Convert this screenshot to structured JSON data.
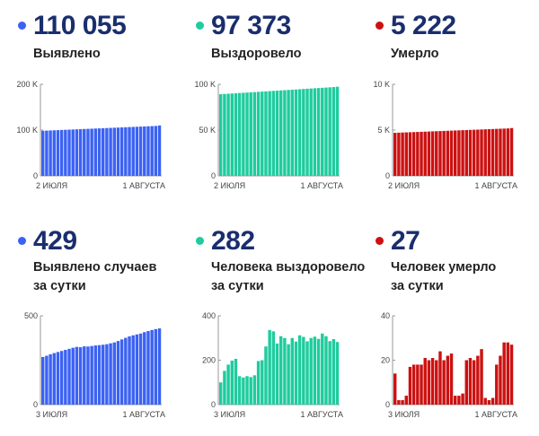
{
  "panels": [
    {
      "id": "detected-total",
      "value": "110 055",
      "label_lines": [
        "Выявлено"
      ],
      "color": "#3b62f3",
      "chart_data": {
        "type": "bar",
        "y_ticks": [
          {
            "v": 0,
            "t": "0"
          },
          {
            "v": 100000,
            "t": "100 K"
          },
          {
            "v": 200000,
            "t": "200 K"
          }
        ],
        "ylim": [
          0,
          200000
        ],
        "x_label_left": "2 ИЮЛЯ",
        "x_label_right": "1 АВГУСТА",
        "values": [
          98500,
          98850,
          99200,
          99550,
          99900,
          100250,
          100600,
          100950,
          101300,
          101650,
          102000,
          102350,
          102700,
          103050,
          103400,
          103750,
          104100,
          104450,
          104800,
          105150,
          105500,
          105850,
          106200,
          106550,
          106900,
          107250,
          107600,
          107950,
          108300,
          108650,
          109000,
          110055
        ]
      }
    },
    {
      "id": "recovered-total",
      "value": "97 373",
      "label_lines": [
        "Выздоровело"
      ],
      "color": "#1fcc9e",
      "chart_data": {
        "type": "bar",
        "y_ticks": [
          {
            "v": 0,
            "t": "0"
          },
          {
            "v": 50000,
            "t": "50 K"
          },
          {
            "v": 100000,
            "t": "100 K"
          }
        ],
        "ylim": [
          0,
          100000
        ],
        "x_label_left": "2 ИЮЛЯ",
        "x_label_right": "1 АВГУСТА",
        "values": [
          89200,
          89460,
          89720,
          89980,
          90240,
          90500,
          90760,
          91020,
          91280,
          91540,
          91800,
          92060,
          92320,
          92580,
          92840,
          93100,
          93360,
          93620,
          93880,
          94140,
          94400,
          94660,
          94920,
          95180,
          95440,
          95700,
          95960,
          96220,
          96480,
          96740,
          97000,
          97373
        ]
      }
    },
    {
      "id": "deaths-total",
      "value": "5 222",
      "label_lines": [
        "Умерло"
      ],
      "color": "#cc1111",
      "chart_data": {
        "type": "bar",
        "y_ticks": [
          {
            "v": 0,
            "t": "0"
          },
          {
            "v": 5000,
            "t": "5 K"
          },
          {
            "v": 10000,
            "t": "10 K"
          }
        ],
        "ylim": [
          0,
          10000
        ],
        "x_label_left": "2 ИЮЛЯ",
        "x_label_right": "1 АВГУСТА",
        "values": [
          4700,
          4716,
          4732,
          4748,
          4764,
          4780,
          4796,
          4812,
          4828,
          4844,
          4860,
          4876,
          4892,
          4908,
          4924,
          4940,
          4956,
          4972,
          4988,
          5004,
          5020,
          5036,
          5052,
          5068,
          5084,
          5100,
          5116,
          5132,
          5148,
          5164,
          5180,
          5222
        ]
      }
    },
    {
      "id": "detected-daily",
      "value": "429",
      "label_lines": [
        "Выявлено случаев",
        "за сутки"
      ],
      "color": "#3b62f3",
      "chart_data": {
        "type": "bar",
        "y_ticks": [
          {
            "v": 0,
            "t": "0"
          },
          {
            "v": 500,
            "t": "500"
          }
        ],
        "ylim": [
          0,
          500
        ],
        "x_label_left": "3 ИЮЛЯ",
        "x_label_right": "1 АВГУСТА",
        "values": [
          268,
          275,
          283,
          290,
          296,
          302,
          308,
          314,
          320,
          325,
          323,
          328,
          327,
          330,
          333,
          335,
          337,
          340,
          345,
          350,
          358,
          367,
          376,
          384,
          390,
          395,
          400,
          408,
          414,
          420,
          425,
          429
        ]
      }
    },
    {
      "id": "recovered-daily",
      "value": "282",
      "label_lines": [
        "Человека выздоровело",
        "за сутки"
      ],
      "color": "#1fcc9e",
      "chart_data": {
        "type": "bar",
        "y_ticks": [
          {
            "v": 0,
            "t": "0"
          },
          {
            "v": 200,
            "t": "200"
          },
          {
            "v": 400,
            "t": "400"
          }
        ],
        "ylim": [
          0,
          400
        ],
        "x_label_left": "3 ИЮЛЯ",
        "x_label_right": "1 АВГУСТА",
        "values": [
          100,
          152,
          180,
          198,
          206,
          128,
          122,
          128,
          124,
          132,
          196,
          200,
          262,
          336,
          330,
          275,
          308,
          300,
          272,
          300,
          284,
          312,
          305,
          285,
          300,
          306,
          296,
          320,
          308,
          286,
          295,
          282
        ]
      }
    },
    {
      "id": "deaths-daily",
      "value": "27",
      "label_lines": [
        "Человек умерло",
        "за сутки"
      ],
      "color": "#cc1111",
      "chart_data": {
        "type": "bar",
        "y_ticks": [
          {
            "v": 0,
            "t": "0"
          },
          {
            "v": 20,
            "t": "20"
          },
          {
            "v": 40,
            "t": "40"
          }
        ],
        "ylim": [
          0,
          40
        ],
        "x_label_left": "3 ИЮЛЯ",
        "x_label_right": "1 АВГУСТА",
        "values": [
          14,
          2,
          2,
          4,
          17,
          18,
          18,
          18,
          21,
          20,
          21,
          20,
          24,
          20,
          22,
          23,
          4,
          4,
          5,
          20,
          21,
          20,
          22,
          25,
          3,
          2,
          3,
          18,
          22,
          28,
          28,
          27
        ]
      }
    }
  ]
}
